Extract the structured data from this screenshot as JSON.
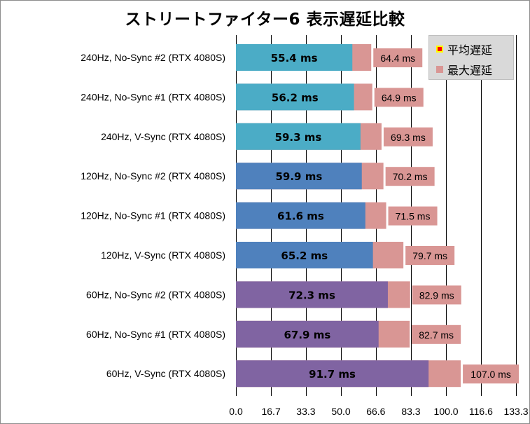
{
  "chart_data": {
    "type": "bar",
    "orientation": "horizontal",
    "stacked": "overlay",
    "title": "ストリートファイター6 表示遅延比較",
    "categories": [
      "240Hz, No-Sync #2 (RTX 4080S)",
      "240Hz, No-Sync #1 (RTX 4080S)",
      "240Hz, V-Sync (RTX 4080S)",
      "120Hz, No-Sync #2 (RTX 4080S)",
      "120Hz, No-Sync #1 (RTX 4080S)",
      "120Hz, V-Sync (RTX 4080S)",
      "60Hz, No-Sync #2 (RTX 4080S)",
      "60Hz, No-Sync #1 (RTX 4080S)",
      "60Hz, V-Sync (RTX 4080S)"
    ],
    "series": [
      {
        "name": "平均遅延",
        "values": [
          55.4,
          56.2,
          59.3,
          59.9,
          61.6,
          65.2,
          72.3,
          67.9,
          91.7
        ],
        "labels": [
          "55.4 ms",
          "56.2 ms",
          "59.3 ms",
          "59.9 ms",
          "61.6 ms",
          "65.2 ms",
          "72.3 ms",
          "67.9 ms",
          "91.7 ms"
        ],
        "point_colors": [
          "#4bacc6",
          "#4bacc6",
          "#4bacc6",
          "#4f81bd",
          "#4f81bd",
          "#4f81bd",
          "#8064a2",
          "#8064a2",
          "#8064a2"
        ]
      },
      {
        "name": "最大遅延",
        "values": [
          64.4,
          64.9,
          69.3,
          70.2,
          71.5,
          79.7,
          82.9,
          82.7,
          107.0
        ],
        "labels": [
          "64.4 ms",
          "64.9 ms",
          "69.3 ms",
          "70.2 ms",
          "71.5 ms",
          "79.7 ms",
          "82.9 ms",
          "82.7 ms",
          "107.0 ms"
        ],
        "color": "#d99694"
      }
    ],
    "xlim": [
      0,
      133.3
    ],
    "xticks": [
      0,
      16.7,
      33.3,
      50.0,
      66.6,
      83.3,
      100.0,
      116.6,
      133.3
    ],
    "xtick_labels": [
      "0.0",
      "16.7",
      "33.3",
      "50.0",
      "66.6",
      "83.3",
      "100.0",
      "116.6",
      "133.3"
    ],
    "grid": "vertical",
    "legend": {
      "position": "top-right",
      "items": [
        {
          "label": "平均遅延",
          "swatch_fill": "#ff0000",
          "swatch_border": "#ffff00"
        },
        {
          "label": "最大遅延",
          "swatch_fill": "#d99694",
          "swatch_border": "#d99694"
        }
      ]
    },
    "colors": {
      "gridline": "#000000",
      "label_box": "#d99694"
    }
  }
}
